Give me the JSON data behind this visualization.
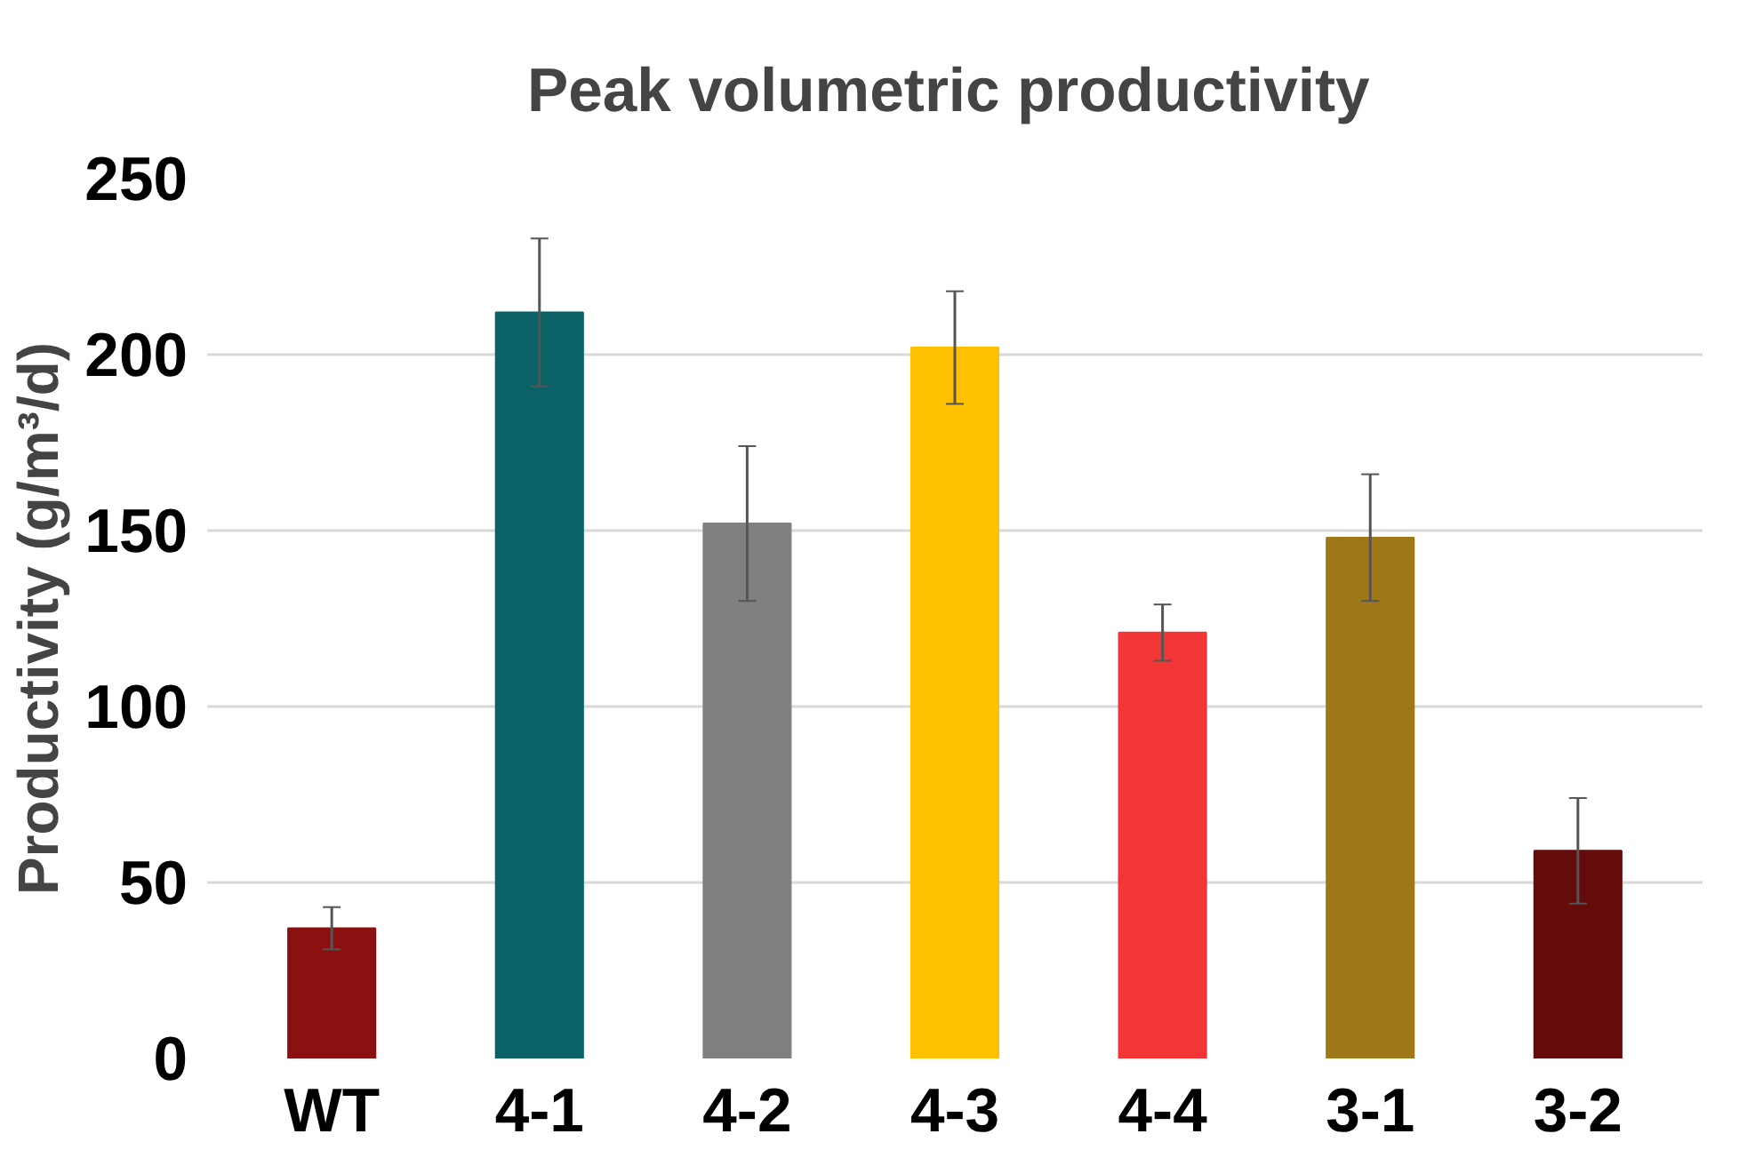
{
  "chart_data": {
    "type": "bar",
    "title": "Peak volumetric productivity",
    "ylabel": "Productivity (g/m³/d)",
    "categories": [
      "WT",
      "4-1",
      "4-2",
      "4-3",
      "4-4",
      "3-1",
      "3-2"
    ],
    "values": [
      37,
      212,
      152,
      202,
      121,
      148,
      59
    ],
    "errors": [
      6,
      21,
      22,
      16,
      8,
      18,
      15
    ],
    "colors": [
      "#8b1010",
      "#0a6266",
      "#808080",
      "#ffc000",
      "#f23535",
      "#9e7719",
      "#640c0c"
    ],
    "ylim": [
      0,
      250
    ],
    "yticks": [
      0,
      50,
      100,
      150,
      200,
      250
    ],
    "grid": "y"
  }
}
